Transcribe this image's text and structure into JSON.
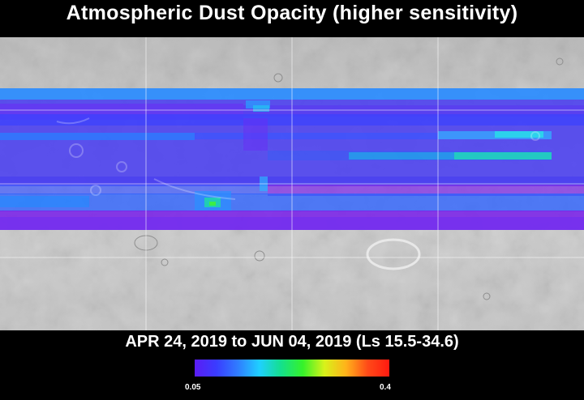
{
  "title": "Atmospheric Dust Opacity (higher sensitivity)",
  "date_range": "APR 24, 2019 to JUN 04, 2019 (Ls 15.5-34.6)",
  "colorbar": {
    "min_label": "0.05",
    "max_label": "0.4",
    "min": 0.05,
    "max": 0.4,
    "colors": [
      "#5b1cf5",
      "#3a3cff",
      "#2f7dff",
      "#1fd0ff",
      "#14e08c",
      "#35f22a",
      "#d8f21a",
      "#ffb21a",
      "#ff4a18",
      "#ff1a10"
    ]
  },
  "map": {
    "projection": "equirectangular",
    "grid_lines": "on",
    "basemap": "grayscale shaded relief",
    "overlay": "dust opacity swaths"
  }
}
